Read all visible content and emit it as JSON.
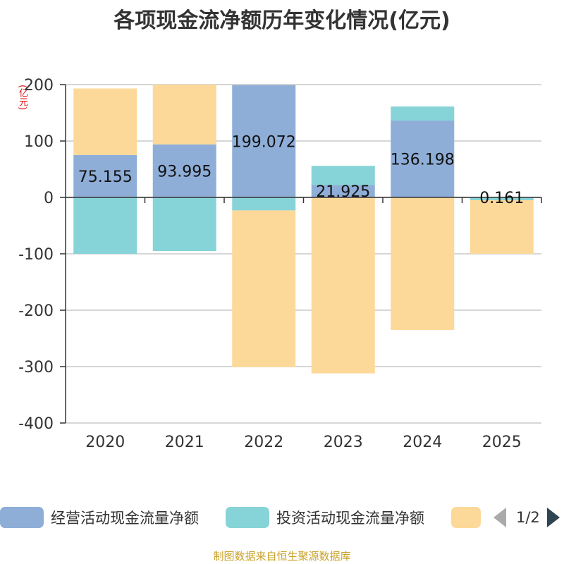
{
  "chart_data": {
    "type": "bar",
    "stacked": true,
    "title": "各项现金流净额历年变化情况(亿元)",
    "ylabel": "(亿元)",
    "xlabel": "",
    "ylim": [
      -400,
      200
    ],
    "yticks": [
      200,
      100,
      0,
      -100,
      -200,
      -300,
      -400
    ],
    "categories": [
      "2020",
      "2021",
      "2022",
      "2023",
      "2024",
      "2025"
    ],
    "series": [
      {
        "name": "经营活动现金流量净额",
        "color": "#8eaed8",
        "values": [
          75.155,
          93.995,
          199.072,
          21.925,
          136.198,
          0.161
        ],
        "labels": [
          "75.155",
          "93.995",
          "199.072",
          "21.925",
          "136.198",
          "0.161"
        ]
      },
      {
        "name": "投资活动现金流量净额",
        "color": "#87d4d8",
        "values": [
          -100,
          -95,
          -23,
          34,
          25,
          -5
        ]
      },
      {
        "name": "",
        "color": "#fdd999",
        "values": [
          118,
          106,
          -278,
          -312,
          -235,
          -95
        ]
      }
    ],
    "grid": true,
    "legend_position": "bottom"
  },
  "legend": {
    "items": [
      {
        "label": "经营活动现金流量净额",
        "color": "#8eaed8"
      },
      {
        "label": "投资活动现金流量净额",
        "color": "#87d4d8"
      },
      {
        "label": "",
        "color": "#fdd999"
      }
    ],
    "page": "1/2"
  },
  "source": "制图数据来自恒生聚源数据库"
}
